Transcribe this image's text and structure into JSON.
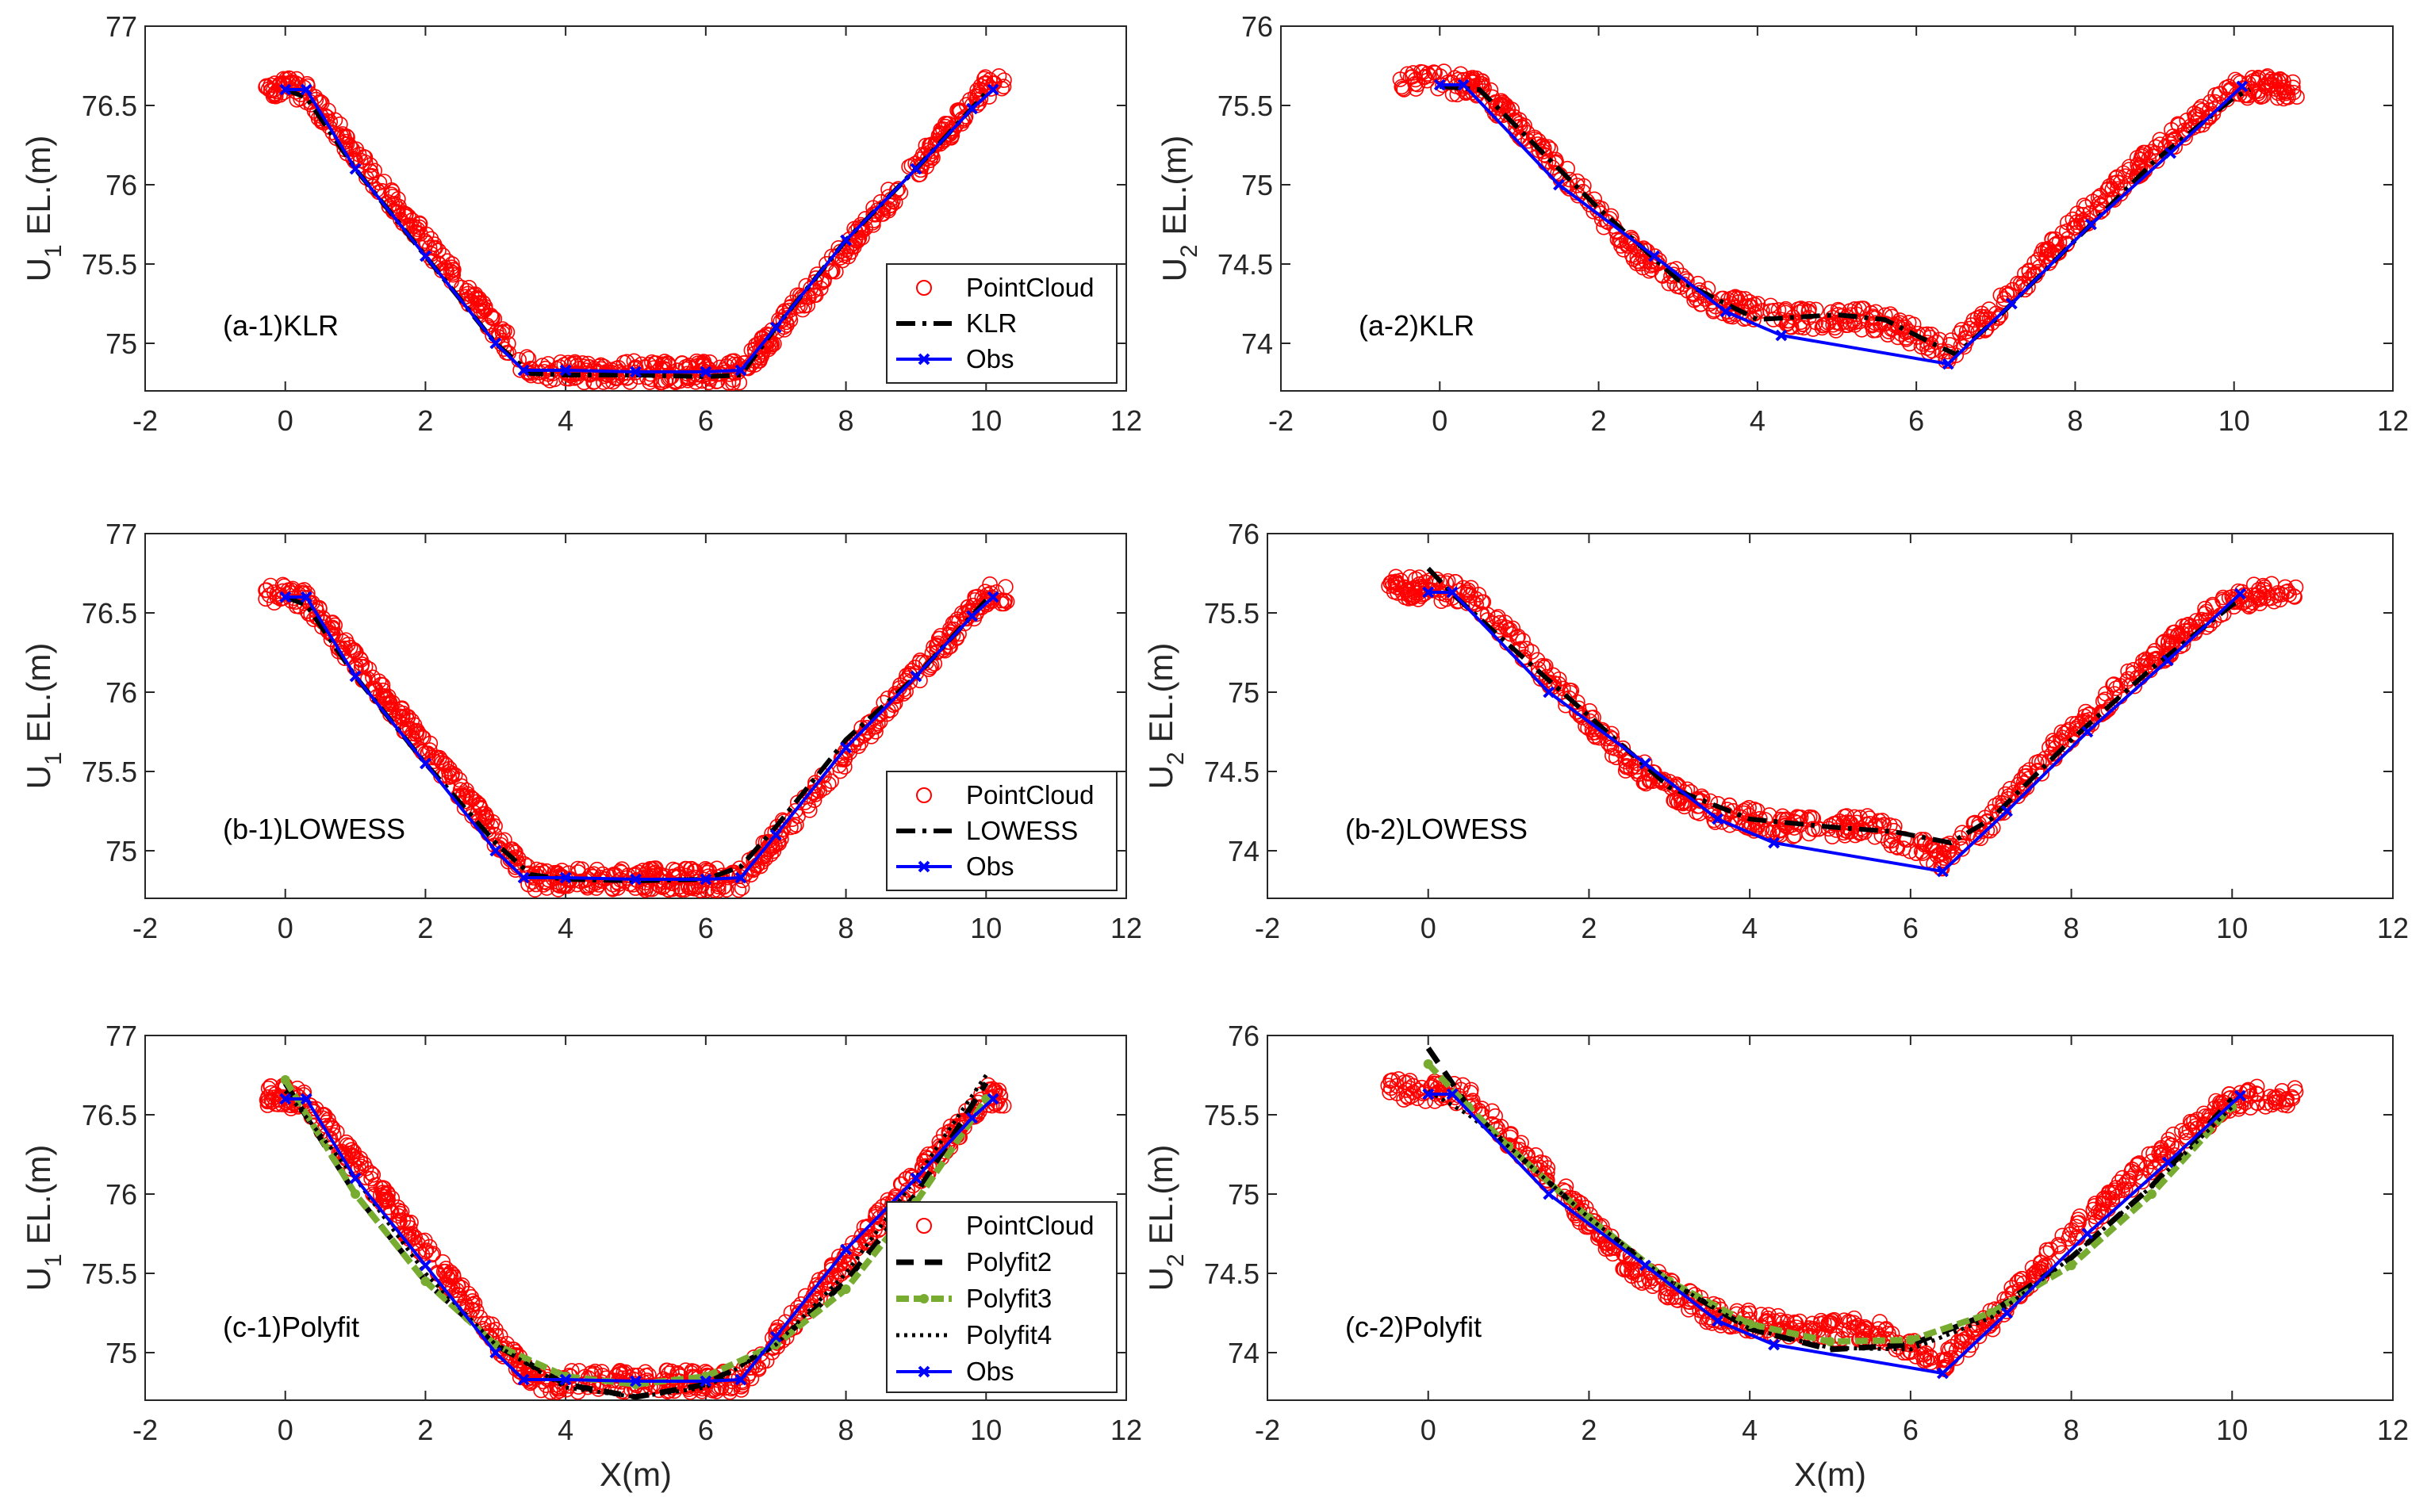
{
  "figure": {
    "colors": {
      "pointcloud": "#ff0000",
      "klr": "#000000",
      "obs": "#0000ff",
      "polyfit3": "#77ac30",
      "axis": "#262626"
    }
  },
  "chart_data": [
    {
      "id": "a1",
      "type": "line",
      "annotation": "(a-1)KLR",
      "ylabel": "U",
      "ylabel_sub": "1",
      "ylabel_rest": " EL.(m)",
      "xlabel": "",
      "xlim": [
        -2,
        12
      ],
      "ylim": [
        74.7,
        77
      ],
      "xticks": [
        "-2",
        "0",
        "2",
        "4",
        "6",
        "8",
        "10",
        "12"
      ],
      "yticks": [
        "75",
        "75.5",
        "76",
        "76.5",
        "77"
      ],
      "legend_position": "lower-right",
      "legend": [
        {
          "label": "PointCloud",
          "style": "circle"
        },
        {
          "label": "KLR",
          "style": "dashdot"
        },
        {
          "label": "Obs",
          "style": "obs"
        }
      ],
      "pointcloud_profile": {
        "x": [
          -0.3,
          0,
          0.3,
          3.5,
          6.5,
          10,
          10.3
        ],
        "y": [
          76.62,
          76.62,
          76.58,
          74.82,
          74.82,
          76.62,
          76.62
        ]
      },
      "series": [
        {
          "name": "KLR",
          "style": "dashdot",
          "x": [
            0,
            0.3,
            1,
            2,
            3,
            3.5,
            4,
            5,
            6,
            6.5,
            7,
            8,
            9,
            10
          ],
          "y": [
            76.6,
            76.55,
            76.1,
            75.55,
            75.0,
            74.81,
            74.8,
            74.8,
            74.79,
            74.8,
            75.1,
            75.65,
            76.1,
            76.58
          ]
        },
        {
          "name": "Obs",
          "style": "obs",
          "x": [
            0,
            0.3,
            1,
            2,
            3,
            3.4,
            4,
            5,
            6,
            6.5,
            7,
            8,
            9,
            9.8,
            10.1
          ],
          "y": [
            76.6,
            76.6,
            76.1,
            75.55,
            75.0,
            74.83,
            74.83,
            74.82,
            74.82,
            74.83,
            75.1,
            75.65,
            76.1,
            76.48,
            76.6
          ]
        }
      ]
    },
    {
      "id": "a2",
      "type": "line",
      "annotation": "(a-2)KLR",
      "ylabel": "U",
      "ylabel_sub": "2",
      "ylabel_rest": " EL.(m)",
      "xlabel": "",
      "xlim": [
        -2,
        12
      ],
      "ylim": [
        73.7,
        76
      ],
      "xticks": [
        "-2",
        "0",
        "2",
        "4",
        "6",
        "8",
        "10",
        "12"
      ],
      "yticks": [
        "74",
        "74.5",
        "75",
        "75.5",
        "76"
      ],
      "legend_position": "none",
      "legend": [],
      "pointcloud_profile": {
        "x": [
          -0.5,
          0,
          0.5,
          1.5,
          2.5,
          3.5,
          4.5,
          5.5,
          6,
          6.4,
          7,
          8,
          9,
          10,
          10.5,
          10.8
        ],
        "y": [
          75.67,
          75.65,
          75.62,
          75.1,
          74.55,
          74.25,
          74.15,
          74.15,
          74.05,
          73.95,
          74.2,
          74.75,
          75.2,
          75.6,
          75.62,
          75.6
        ]
      },
      "series": [
        {
          "name": "KLR",
          "style": "dashdot",
          "x": [
            0,
            0.5,
            1,
            2,
            3,
            4,
            5,
            5.6,
            6.2,
            6.5,
            7,
            8,
            9,
            10,
            10.2
          ],
          "y": [
            75.62,
            75.6,
            75.35,
            74.85,
            74.4,
            74.15,
            74.18,
            74.15,
            74.0,
            73.93,
            74.15,
            74.65,
            75.15,
            75.55,
            75.6
          ]
        },
        {
          "name": "Obs",
          "style": "obs",
          "x": [
            0,
            0.3,
            1.5,
            2.7,
            3.6,
            4.3,
            6.4,
            7.2,
            8.2,
            9.2,
            10.1
          ],
          "y": [
            75.63,
            75.63,
            75.0,
            74.55,
            74.2,
            74.05,
            73.87,
            74.25,
            74.75,
            75.2,
            75.62
          ]
        }
      ]
    },
    {
      "id": "b1",
      "type": "line",
      "annotation": "(b-1)LOWESS",
      "ylabel": "U",
      "ylabel_sub": "1",
      "ylabel_rest": " EL.(m)",
      "xlabel": "",
      "xlim": [
        -2,
        12
      ],
      "ylim": [
        74.7,
        77
      ],
      "xticks": [
        "-2",
        "0",
        "2",
        "4",
        "6",
        "8",
        "10",
        "12"
      ],
      "yticks": [
        "75",
        "75.5",
        "76",
        "76.5",
        "77"
      ],
      "legend_position": "lower-right",
      "legend": [
        {
          "label": "PointCloud",
          "style": "circle"
        },
        {
          "label": "LOWESS",
          "style": "dashdot"
        },
        {
          "label": "Obs",
          "style": "obs"
        }
      ],
      "pointcloud_profile": {
        "x": [
          -0.3,
          0,
          0.3,
          3.5,
          6.5,
          10,
          10.3
        ],
        "y": [
          76.62,
          76.62,
          76.58,
          74.82,
          74.82,
          76.62,
          76.62
        ]
      },
      "series": [
        {
          "name": "LOWESS",
          "style": "dashdot",
          "x": [
            0,
            0.3,
            1,
            2,
            3,
            3.5,
            4,
            5,
            6,
            6.5,
            7,
            8,
            9,
            10
          ],
          "y": [
            76.6,
            76.55,
            76.1,
            75.55,
            75.05,
            74.85,
            74.82,
            74.81,
            74.82,
            74.9,
            75.15,
            75.7,
            76.1,
            76.58
          ]
        },
        {
          "name": "Obs",
          "style": "obs",
          "x": [
            0,
            0.3,
            1,
            2,
            3,
            3.4,
            4,
            5,
            6,
            6.5,
            7,
            8,
            9,
            9.8,
            10.1
          ],
          "y": [
            76.6,
            76.6,
            76.1,
            75.55,
            75.0,
            74.83,
            74.83,
            74.82,
            74.82,
            74.83,
            75.1,
            75.65,
            76.1,
            76.48,
            76.6
          ]
        }
      ]
    },
    {
      "id": "b2",
      "type": "line",
      "annotation": "(b-2)LOWESS",
      "ylabel": "U",
      "ylabel_sub": "2",
      "ylabel_rest": " EL.(m)",
      "xlabel": "",
      "xlim": [
        -2,
        12
      ],
      "ylim": [
        73.7,
        76
      ],
      "xticks": [
        "-2",
        "0",
        "2",
        "4",
        "6",
        "8",
        "10",
        "12"
      ],
      "yticks": [
        "74",
        "74.5",
        "75",
        "75.5",
        "76"
      ],
      "legend_position": "none",
      "legend": [],
      "pointcloud_profile": {
        "x": [
          -0.5,
          0,
          0.5,
          1.5,
          2.5,
          3.5,
          4.5,
          5.5,
          6,
          6.4,
          7,
          8,
          9,
          10,
          10.5,
          10.8
        ],
        "y": [
          75.67,
          75.65,
          75.62,
          75.1,
          74.55,
          74.25,
          74.15,
          74.15,
          74.05,
          73.95,
          74.2,
          74.75,
          75.2,
          75.6,
          75.62,
          75.6
        ]
      },
      "series": [
        {
          "name": "LOWESS",
          "style": "dashdot",
          "x": [
            0,
            0.3,
            1,
            2,
            3,
            4,
            5,
            5.8,
            6.5,
            7,
            8,
            9,
            10,
            10.1
          ],
          "y": [
            75.78,
            75.62,
            75.3,
            74.85,
            74.4,
            74.2,
            74.15,
            74.12,
            74.05,
            74.2,
            74.7,
            75.15,
            75.55,
            75.58
          ]
        },
        {
          "name": "Obs",
          "style": "obs",
          "x": [
            0,
            0.3,
            1.5,
            2.7,
            3.6,
            4.3,
            6.4,
            7.2,
            8.2,
            9.2,
            10.1
          ],
          "y": [
            75.63,
            75.63,
            75.0,
            74.55,
            74.2,
            74.05,
            73.87,
            74.25,
            74.75,
            75.2,
            75.62
          ]
        }
      ]
    },
    {
      "id": "c1",
      "type": "line",
      "annotation": "(c-1)Polyfit",
      "ylabel": "U",
      "ylabel_sub": "1",
      "ylabel_rest": " EL.(m)",
      "xlabel": "X(m)",
      "xlim": [
        -2,
        12
      ],
      "ylim": [
        74.7,
        77
      ],
      "xticks": [
        "-2",
        "0",
        "2",
        "4",
        "6",
        "8",
        "10",
        "12"
      ],
      "yticks": [
        "75",
        "75.5",
        "76",
        "76.5",
        "77"
      ],
      "legend_position": "lower-right",
      "legend": [
        {
          "label": "PointCloud",
          "style": "circle"
        },
        {
          "label": "Polyfit2",
          "style": "dash"
        },
        {
          "label": "Polyfit3",
          "style": "poly3"
        },
        {
          "label": "Polyfit4",
          "style": "dot"
        },
        {
          "label": "Obs",
          "style": "obs"
        }
      ],
      "pointcloud_profile": {
        "x": [
          -0.3,
          0,
          0.3,
          3.5,
          6.5,
          10,
          10.3
        ],
        "y": [
          76.62,
          76.62,
          76.58,
          74.82,
          74.82,
          76.62,
          76.62
        ]
      },
      "series": [
        {
          "name": "Polyfit2",
          "style": "dash",
          "x": [
            0,
            1,
            2,
            3,
            4,
            5,
            6,
            7,
            8,
            9,
            10
          ],
          "y": [
            76.7,
            76.0,
            75.45,
            75.05,
            74.8,
            74.72,
            74.8,
            75.05,
            75.45,
            76.0,
            76.7
          ]
        },
        {
          "name": "Polyfit3",
          "style": "poly3",
          "x": [
            0,
            1,
            2,
            3,
            4,
            5,
            6,
            7,
            8,
            9,
            10
          ],
          "y": [
            76.72,
            76.0,
            75.45,
            75.05,
            74.85,
            74.8,
            74.85,
            75.05,
            75.4,
            75.95,
            76.6
          ]
        },
        {
          "name": "Polyfit4",
          "style": "dot",
          "x": [
            0,
            1,
            2,
            3,
            4,
            5,
            6,
            7,
            8,
            9,
            10
          ],
          "y": [
            76.65,
            76.1,
            75.5,
            75.05,
            74.78,
            74.72,
            74.78,
            75.05,
            75.5,
            76.1,
            76.75
          ]
        },
        {
          "name": "Obs",
          "style": "obs",
          "x": [
            0,
            0.3,
            1,
            2,
            3,
            3.4,
            4,
            5,
            6,
            6.5,
            7,
            8,
            9,
            9.8,
            10.1
          ],
          "y": [
            76.6,
            76.6,
            76.1,
            75.55,
            75.0,
            74.83,
            74.83,
            74.82,
            74.82,
            74.83,
            75.1,
            75.65,
            76.1,
            76.48,
            76.6
          ]
        }
      ]
    },
    {
      "id": "c2",
      "type": "line",
      "annotation": "(c-2)Polyfit",
      "ylabel": "U",
      "ylabel_sub": "2",
      "ylabel_rest": " EL.(m)",
      "xlabel": "X(m)",
      "xlim": [
        -2,
        12
      ],
      "ylim": [
        73.7,
        76
      ],
      "xticks": [
        "-2",
        "0",
        "2",
        "4",
        "6",
        "8",
        "10",
        "12"
      ],
      "yticks": [
        "74",
        "74.5",
        "75",
        "75.5",
        "76"
      ],
      "legend_position": "none",
      "legend": [],
      "pointcloud_profile": {
        "x": [
          -0.5,
          0,
          0.5,
          1.5,
          2.5,
          3.5,
          4.5,
          5.5,
          6,
          6.4,
          7,
          8,
          9,
          10,
          10.5,
          10.8
        ],
        "y": [
          75.67,
          75.65,
          75.62,
          75.1,
          74.55,
          74.25,
          74.15,
          74.15,
          74.05,
          73.95,
          74.2,
          74.75,
          75.2,
          75.6,
          75.62,
          75.6
        ]
      },
      "series": [
        {
          "name": "Polyfit2",
          "style": "dash",
          "x": [
            0,
            0.5,
            1,
            2,
            3,
            4,
            5,
            6,
            7,
            8,
            9,
            10
          ],
          "y": [
            75.92,
            75.55,
            75.3,
            74.85,
            74.45,
            74.15,
            74.02,
            74.05,
            74.25,
            74.6,
            75.05,
            75.6
          ]
        },
        {
          "name": "Polyfit3",
          "style": "poly3",
          "x": [
            0,
            0.5,
            1,
            2,
            3,
            4,
            5,
            6,
            7,
            8,
            9,
            10
          ],
          "y": [
            75.82,
            75.55,
            75.3,
            74.85,
            74.45,
            74.18,
            74.07,
            74.08,
            74.25,
            74.55,
            75.0,
            75.55
          ]
        },
        {
          "name": "Polyfit4",
          "style": "dot",
          "x": [
            0,
            0.5,
            1,
            2,
            3,
            4,
            5,
            6,
            7,
            8,
            9,
            10
          ],
          "y": [
            75.65,
            75.5,
            75.3,
            74.85,
            74.45,
            74.15,
            74.03,
            74.02,
            74.22,
            74.6,
            75.05,
            75.55
          ]
        },
        {
          "name": "Obs",
          "style": "obs",
          "x": [
            0,
            0.3,
            1.5,
            2.7,
            3.6,
            4.3,
            6.4,
            7.2,
            8.2,
            9.2,
            10.1
          ],
          "y": [
            75.63,
            75.63,
            75.0,
            74.55,
            74.2,
            74.05,
            73.87,
            74.25,
            74.75,
            75.2,
            75.62
          ]
        }
      ]
    }
  ]
}
